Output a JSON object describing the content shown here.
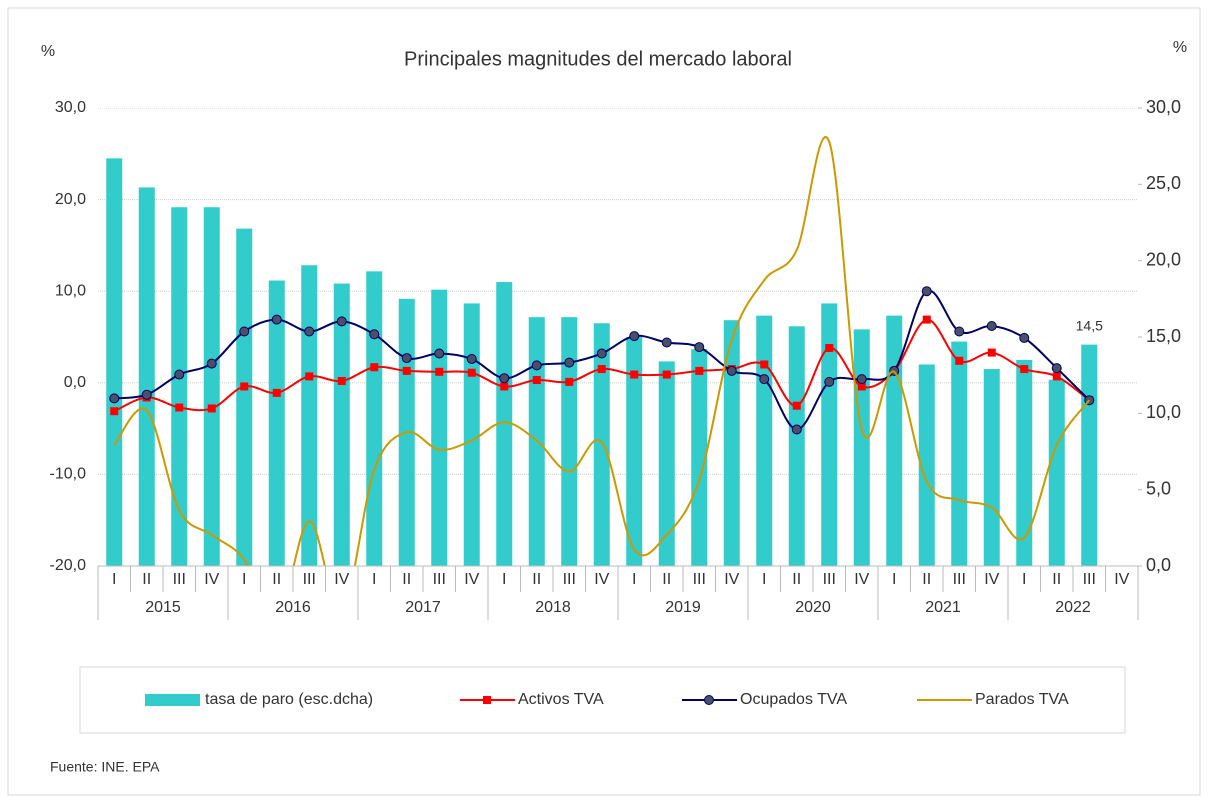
{
  "chart_data": {
    "type": "bar-line",
    "title": "Principales magnitudes del mercado laboral",
    "y_label": "%",
    "y2_label": "%",
    "categories": [
      "I",
      "II",
      "III",
      "IV",
      "I",
      "II",
      "III",
      "IV",
      "I",
      "II",
      "III",
      "IV",
      "I",
      "II",
      "III",
      "IV",
      "I",
      "II",
      "III",
      "IV",
      "I",
      "II",
      "III",
      "IV",
      "I",
      "II",
      "III",
      "IV",
      "I",
      "II",
      "III",
      "IV"
    ],
    "years": [
      "2015",
      "2016",
      "2017",
      "2018",
      "2019",
      "2020",
      "2021",
      "2022"
    ],
    "ylim": [
      -20,
      30
    ],
    "yticks": [
      {
        "value": -20,
        "label": "-20,0"
      },
      {
        "value": -10,
        "label": "-10,0"
      },
      {
        "value": 0,
        "label": "0,0"
      },
      {
        "value": 10,
        "label": "10,0"
      },
      {
        "value": 20,
        "label": "20,0"
      },
      {
        "value": 30,
        "label": "30,0"
      }
    ],
    "y2lim": [
      0,
      30
    ],
    "y2ticks": [
      {
        "value": 0,
        "label": "0,0"
      },
      {
        "value": 5,
        "label": "5,0"
      },
      {
        "value": 10,
        "label": "10,0"
      },
      {
        "value": 15,
        "label": "15,0"
      },
      {
        "value": 20,
        "label": "20,0"
      },
      {
        "value": 25,
        "label": "25,0"
      },
      {
        "value": 30,
        "label": "30,0"
      }
    ],
    "grid": true,
    "series": [
      {
        "name": "tasa de paro (esc.dcha)",
        "type": "bar",
        "axis": "y2",
        "color": "#33CCCC",
        "values": [
          26.7,
          24.8,
          23.5,
          23.5,
          22.1,
          18.7,
          19.7,
          18.5,
          19.3,
          17.5,
          18.1,
          17.2,
          18.6,
          16.3,
          16.3,
          15.9,
          15.0,
          13.4,
          14.2,
          16.1,
          16.4,
          15.7,
          17.2,
          15.5,
          16.4,
          13.2,
          14.7,
          12.9,
          13.5,
          12.2,
          14.5,
          null
        ],
        "value_labels": [
          null,
          null,
          null,
          null,
          null,
          null,
          null,
          null,
          null,
          null,
          null,
          null,
          null,
          null,
          null,
          null,
          null,
          null,
          null,
          null,
          null,
          null,
          null,
          null,
          null,
          null,
          null,
          null,
          null,
          null,
          "14,5",
          null
        ]
      },
      {
        "name": "Activos TVA",
        "type": "line",
        "marker": "square",
        "color": "#FF0000",
        "values": [
          -3.1,
          -1.6,
          -2.7,
          -2.8,
          -0.4,
          -1.1,
          0.7,
          0.2,
          1.7,
          1.3,
          1.2,
          1.1,
          -0.4,
          0.3,
          0.1,
          1.5,
          0.9,
          0.9,
          1.3,
          1.5,
          2.0,
          -2.5,
          3.8,
          -0.4,
          1.3,
          6.9,
          2.4,
          3.3,
          1.5,
          0.7,
          -1.9,
          null
        ]
      },
      {
        "name": "Ocupados TVA",
        "type": "line",
        "marker": "circle",
        "color": "#000066",
        "values": [
          -1.7,
          -1.3,
          0.9,
          2.1,
          5.6,
          6.9,
          5.6,
          6.7,
          5.3,
          2.7,
          3.2,
          2.6,
          0.5,
          1.9,
          2.2,
          3.2,
          5.1,
          4.4,
          3.9,
          1.3,
          0.4,
          -5.1,
          0.1,
          0.4,
          1.3,
          10.0,
          5.6,
          6.2,
          4.9,
          1.6,
          -1.9,
          null
        ]
      },
      {
        "name": "Parados TVA",
        "type": "line",
        "marker": "none",
        "color": "#CC9900",
        "values": [
          -6.8,
          -3.0,
          -13.9,
          -16.6,
          -19.3,
          -26,
          -15.1,
          -25,
          -9.5,
          -5.4,
          -7.3,
          -6.3,
          -4.3,
          -6.3,
          -9.7,
          -6.5,
          -18.2,
          -16.6,
          -10.6,
          4.7,
          11.2,
          14.5,
          26.3,
          -5.1,
          1.2,
          -10.8,
          -12.8,
          -13.6,
          -16.9,
          -6.8,
          -1.9,
          null
        ]
      }
    ],
    "source": "Fuente: INE. EPA"
  }
}
